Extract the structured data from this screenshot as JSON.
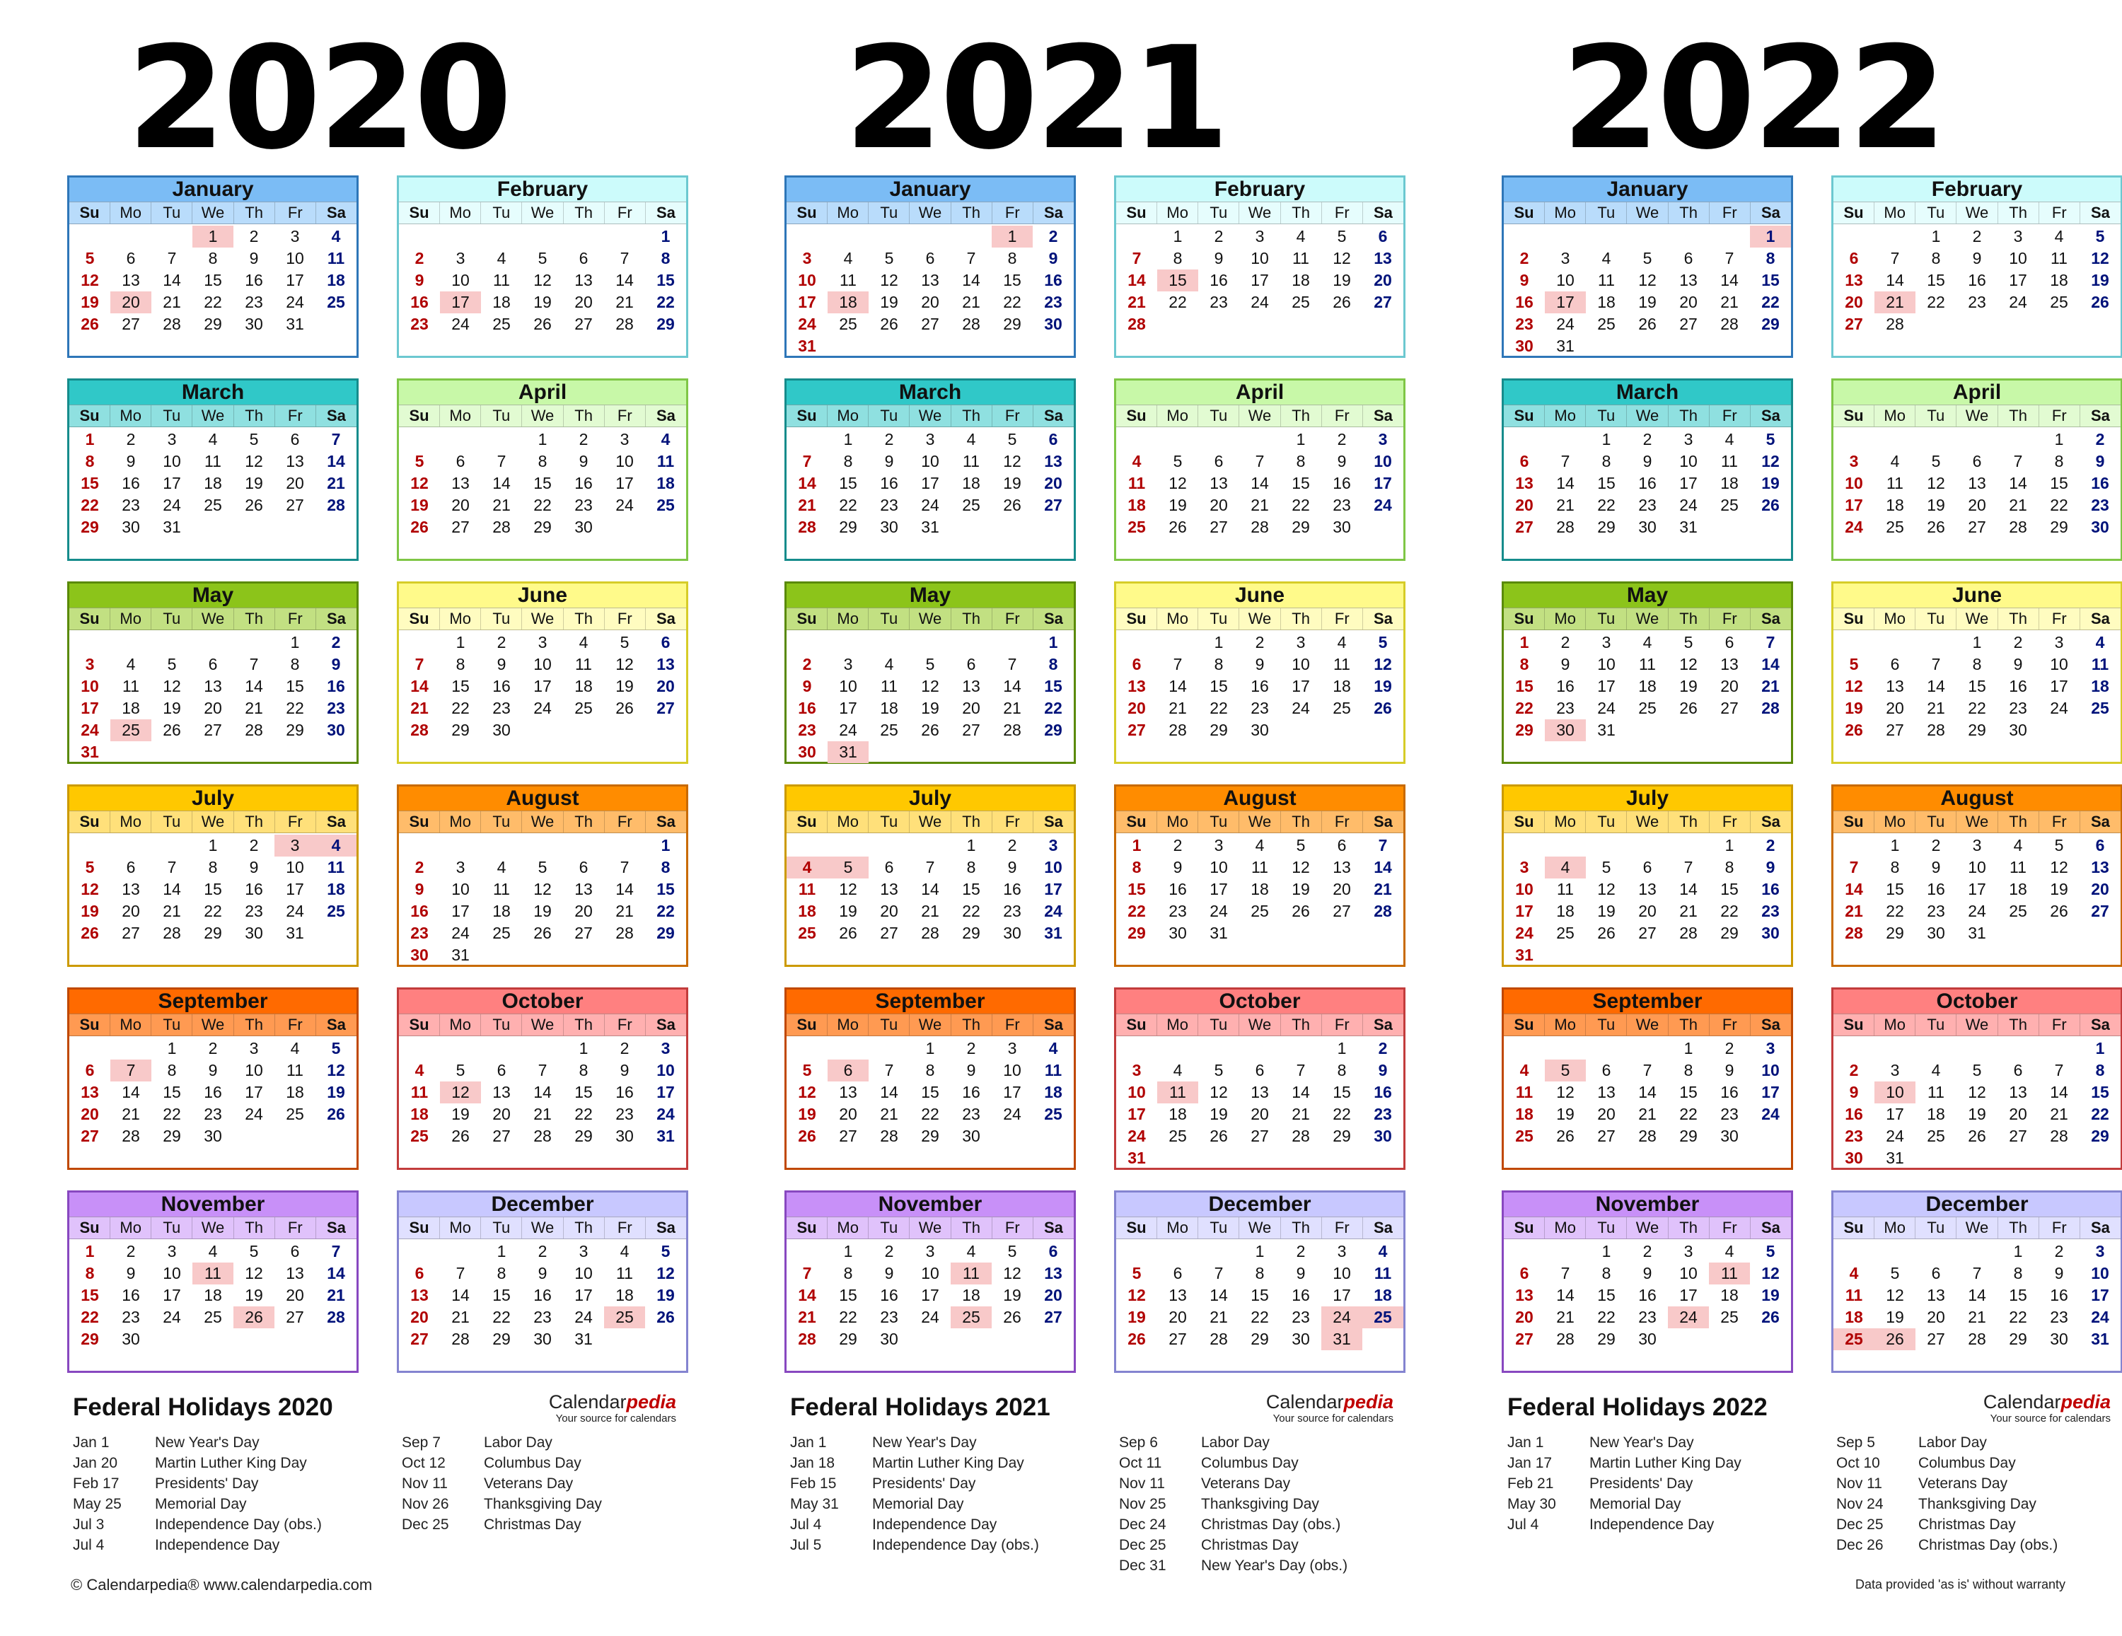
{
  "weekday_labels": [
    "Su",
    "Mo",
    "Tu",
    "We",
    "Th",
    "Fr",
    "Sa"
  ],
  "years": [
    {
      "year": "2020",
      "holidays_title": "Federal Holidays 2020",
      "holidays_left": [
        {
          "date": "Jan 1",
          "name": "New Year's Day"
        },
        {
          "date": "Jan 20",
          "name": "Martin Luther King Day"
        },
        {
          "date": "Feb 17",
          "name": "Presidents' Day"
        },
        {
          "date": "May 25",
          "name": "Memorial Day"
        },
        {
          "date": "Jul 3",
          "name": "Independence Day (obs.)"
        },
        {
          "date": "Jul 4",
          "name": "Independence Day"
        }
      ],
      "holidays_right": [
        {
          "date": "Sep 7",
          "name": "Labor Day"
        },
        {
          "date": "Oct 12",
          "name": "Columbus Day"
        },
        {
          "date": "Nov 11",
          "name": "Veterans Day"
        },
        {
          "date": "Nov 26",
          "name": "Thanksgiving Day"
        },
        {
          "date": "Dec 25",
          "name": "Christmas Day"
        }
      ],
      "months": [
        {
          "name": "January",
          "start": 3,
          "days": 31,
          "holidays": [
            1,
            20
          ]
        },
        {
          "name": "February",
          "start": 6,
          "days": 29,
          "holidays": [
            17
          ]
        },
        {
          "name": "March",
          "start": 0,
          "days": 31,
          "holidays": []
        },
        {
          "name": "April",
          "start": 3,
          "days": 30,
          "holidays": []
        },
        {
          "name": "May",
          "start": 5,
          "days": 31,
          "holidays": [
            25
          ]
        },
        {
          "name": "June",
          "start": 1,
          "days": 30,
          "holidays": []
        },
        {
          "name": "July",
          "start": 3,
          "days": 31,
          "holidays": [
            3,
            4
          ]
        },
        {
          "name": "August",
          "start": 6,
          "days": 31,
          "holidays": []
        },
        {
          "name": "September",
          "start": 2,
          "days": 30,
          "holidays": [
            7
          ]
        },
        {
          "name": "October",
          "start": 4,
          "days": 31,
          "holidays": [
            12
          ]
        },
        {
          "name": "November",
          "start": 0,
          "days": 30,
          "holidays": [
            11,
            26
          ]
        },
        {
          "name": "December",
          "start": 2,
          "days": 31,
          "holidays": [
            25
          ]
        }
      ]
    },
    {
      "year": "2021",
      "holidays_title": "Federal Holidays 2021",
      "holidays_left": [
        {
          "date": "Jan 1",
          "name": "New Year's Day"
        },
        {
          "date": "Jan 18",
          "name": "Martin Luther King Day"
        },
        {
          "date": "Feb 15",
          "name": "Presidents' Day"
        },
        {
          "date": "May 31",
          "name": "Memorial Day"
        },
        {
          "date": "Jul 4",
          "name": "Independence Day"
        },
        {
          "date": "Jul 5",
          "name": "Independence Day (obs.)"
        }
      ],
      "holidays_right": [
        {
          "date": "Sep 6",
          "name": "Labor Day"
        },
        {
          "date": "Oct 11",
          "name": "Columbus Day"
        },
        {
          "date": "Nov 11",
          "name": "Veterans Day"
        },
        {
          "date": "Nov 25",
          "name": "Thanksgiving Day"
        },
        {
          "date": "Dec 24",
          "name": "Christmas Day (obs.)"
        },
        {
          "date": "Dec 25",
          "name": "Christmas Day"
        },
        {
          "date": "Dec 31",
          "name": "New Year's Day (obs.)"
        }
      ],
      "months": [
        {
          "name": "January",
          "start": 5,
          "days": 31,
          "holidays": [
            1,
            18
          ]
        },
        {
          "name": "February",
          "start": 1,
          "days": 28,
          "holidays": [
            15
          ]
        },
        {
          "name": "March",
          "start": 1,
          "days": 31,
          "holidays": []
        },
        {
          "name": "April",
          "start": 4,
          "days": 30,
          "holidays": []
        },
        {
          "name": "May",
          "start": 6,
          "days": 31,
          "holidays": [
            31
          ]
        },
        {
          "name": "June",
          "start": 2,
          "days": 30,
          "holidays": []
        },
        {
          "name": "July",
          "start": 4,
          "days": 31,
          "holidays": [
            4,
            5
          ]
        },
        {
          "name": "August",
          "start": 0,
          "days": 31,
          "holidays": []
        },
        {
          "name": "September",
          "start": 3,
          "days": 30,
          "holidays": [
            6
          ]
        },
        {
          "name": "October",
          "start": 5,
          "days": 31,
          "holidays": [
            11
          ]
        },
        {
          "name": "November",
          "start": 1,
          "days": 30,
          "holidays": [
            11,
            25
          ]
        },
        {
          "name": "December",
          "start": 3,
          "days": 31,
          "holidays": [
            24,
            25,
            31
          ]
        }
      ]
    },
    {
      "year": "2022",
      "holidays_title": "Federal Holidays 2022",
      "holidays_left": [
        {
          "date": "Jan 1",
          "name": "New Year's Day"
        },
        {
          "date": "Jan 17",
          "name": "Martin Luther King Day"
        },
        {
          "date": "Feb 21",
          "name": "Presidents' Day"
        },
        {
          "date": "May 30",
          "name": "Memorial Day"
        },
        {
          "date": "Jul 4",
          "name": "Independence Day"
        }
      ],
      "holidays_right": [
        {
          "date": "Sep 5",
          "name": "Labor Day"
        },
        {
          "date": "Oct 10",
          "name": "Columbus Day"
        },
        {
          "date": "Nov 11",
          "name": "Veterans Day"
        },
        {
          "date": "Nov 24",
          "name": "Thanksgiving Day"
        },
        {
          "date": "Dec 25",
          "name": "Christmas Day"
        },
        {
          "date": "Dec 26",
          "name": "Christmas Day (obs.)"
        }
      ],
      "months": [
        {
          "name": "January",
          "start": 6,
          "days": 31,
          "holidays": [
            1,
            17
          ]
        },
        {
          "name": "February",
          "start": 2,
          "days": 28,
          "holidays": [
            21
          ]
        },
        {
          "name": "March",
          "start": 2,
          "days": 31,
          "holidays": []
        },
        {
          "name": "April",
          "start": 5,
          "days": 30,
          "holidays": []
        },
        {
          "name": "May",
          "start": 0,
          "days": 31,
          "holidays": [
            30
          ]
        },
        {
          "name": "June",
          "start": 3,
          "days": 30,
          "holidays": []
        },
        {
          "name": "July",
          "start": 5,
          "days": 31,
          "holidays": [
            4
          ]
        },
        {
          "name": "August",
          "start": 1,
          "days": 31,
          "holidays": []
        },
        {
          "name": "September",
          "start": 4,
          "days": 30,
          "holidays": [
            5
          ]
        },
        {
          "name": "October",
          "start": 6,
          "days": 31,
          "holidays": [
            10
          ]
        },
        {
          "name": "November",
          "start": 2,
          "days": 30,
          "holidays": [
            11,
            24
          ]
        },
        {
          "name": "December",
          "start": 4,
          "days": 31,
          "holidays": [
            25,
            26
          ]
        }
      ]
    }
  ],
  "month_colors": [
    {
      "header": "#7bbcf5",
      "days": "#b9dcfb",
      "border": "#2e76b8"
    },
    {
      "header": "#ccfbfb",
      "days": "#e6fdfd",
      "border": "#6cc8d0"
    },
    {
      "header": "#30c8c8",
      "days": "#8fe0e0",
      "border": "#168c8c"
    },
    {
      "header": "#c8f8a8",
      "days": "#e2fbd2",
      "border": "#7fc646"
    },
    {
      "header": "#8cc41a",
      "days": "#c2e082",
      "border": "#5a8a08"
    },
    {
      "header": "#fffa8a",
      "days": "#fffcc0",
      "border": "#d6cc28"
    },
    {
      "header": "#ffc800",
      "days": "#ffe07a",
      "border": "#cc9a00"
    },
    {
      "header": "#ff8c00",
      "days": "#ffbc6a",
      "border": "#c86a00"
    },
    {
      "header": "#ff6a00",
      "days": "#ff9a52",
      "border": "#c04800"
    },
    {
      "header": "#ff8080",
      "days": "#ffb0b0",
      "border": "#c23c3c"
    },
    {
      "header": "#c890f8",
      "days": "#e0c2fb",
      "border": "#8848c0"
    },
    {
      "header": "#c8c8ff",
      "days": "#e0e0ff",
      "border": "#8484d0"
    }
  ],
  "brand": {
    "name_plain": "Calendar",
    "name_accent": "pedia",
    "tagline": "Your source for calendars"
  },
  "footer": {
    "left": "© Calendarpedia®   www.calendarpedia.com",
    "right": "Data provided 'as is' without warranty"
  }
}
